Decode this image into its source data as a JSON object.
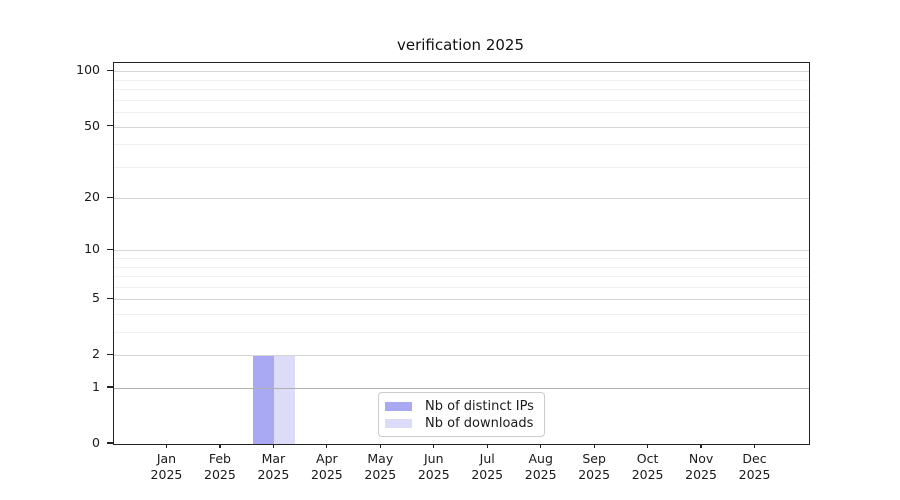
{
  "title": "verification 2025",
  "legend": {
    "items": [
      {
        "label": "Nb of distinct IPs",
        "color": "#a9a9f3"
      },
      {
        "label": "Nb of downloads",
        "color": "#dcdcf8"
      }
    ]
  },
  "chart_data": {
    "type": "bar",
    "title": "verification 2025",
    "categories": [
      "Jan",
      "Feb",
      "Mar",
      "Apr",
      "May",
      "Jun",
      "Jul",
      "Aug",
      "Sep",
      "Oct",
      "Nov",
      "Dec"
    ],
    "year_label": "2025",
    "series": [
      {
        "name": "Nb of distinct IPs",
        "color": "#a9a9f3",
        "values": [
          0,
          0,
          2,
          0,
          0,
          0,
          0,
          0,
          0,
          0,
          0,
          0
        ]
      },
      {
        "name": "Nb of downloads",
        "color": "#dcdcf8",
        "values": [
          0,
          0,
          2,
          0,
          0,
          0,
          0,
          0,
          0,
          0,
          0,
          0
        ]
      }
    ],
    "yticks": [
      0,
      1,
      2,
      5,
      10,
      20,
      50,
      100
    ],
    "minor_yticks": [
      3,
      4,
      6,
      7,
      8,
      9,
      30,
      40,
      60,
      70,
      80,
      90
    ],
    "yscale": "log1p",
    "ylim": [
      0,
      111
    ],
    "xlabel": "",
    "ylabel": "",
    "grid": "horizontal",
    "legend_position": "lower-center",
    "colors": {
      "major_grid": "#d6d6d6",
      "threshold_grid": "#b0b0b0",
      "minor_grid": "#f0f0f0",
      "axis": "#222222",
      "text": "#1a1a1a"
    }
  }
}
